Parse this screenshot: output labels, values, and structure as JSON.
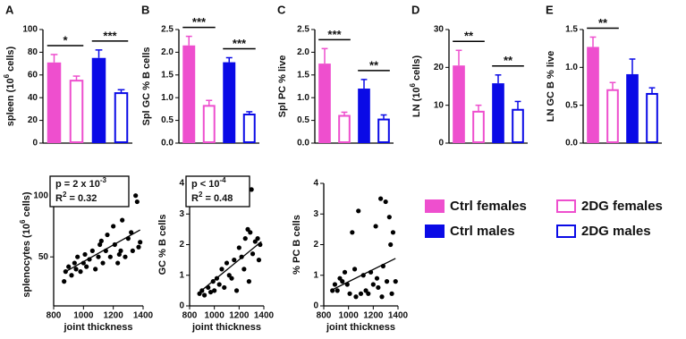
{
  "chart_data": [
    {
      "type": "bar",
      "panel_label": "A",
      "ylabel": {
        "text": "spleen (10",
        "sup": "6",
        "tail": " cells)"
      },
      "values": [
        71,
        55,
        75,
        44
      ],
      "errors": [
        7,
        4,
        7,
        3
      ],
      "colors": [
        "#ee4fce",
        "#ee4fce",
        "#0a0ae6",
        "#0a0ae6"
      ],
      "filled": [
        true,
        false,
        true,
        false
      ],
      "ylim": [
        0,
        100
      ],
      "yticks": [
        0,
        20,
        40,
        60,
        80,
        100
      ],
      "significance": [
        {
          "label": "*",
          "bars": [
            0,
            1
          ]
        },
        {
          "label": "***",
          "bars": [
            2,
            3
          ]
        }
      ]
    },
    {
      "type": "bar",
      "panel_label": "B",
      "ylabel": "Spl GC % B cells",
      "values": [
        2.15,
        0.82,
        1.78,
        0.63
      ],
      "errors": [
        0.2,
        0.12,
        0.1,
        0.06
      ],
      "colors": [
        "#ee4fce",
        "#ee4fce",
        "#0a0ae6",
        "#0a0ae6"
      ],
      "filled": [
        true,
        false,
        true,
        false
      ],
      "ylim": [
        0,
        2.5
      ],
      "yticks": [
        {
          "value": 0,
          "label": "0.0"
        },
        0.5,
        {
          "value": 1,
          "label": "1.0"
        },
        1.5,
        {
          "value": 2,
          "label": "2.0"
        },
        2.5
      ],
      "significance": [
        {
          "label": "***",
          "bars": [
            0,
            1
          ]
        },
        {
          "label": "***",
          "bars": [
            2,
            3
          ]
        }
      ]
    },
    {
      "type": "bar",
      "panel_label": "C",
      "ylabel": "Spl PC % live",
      "values": [
        1.75,
        0.6,
        1.2,
        0.52
      ],
      "errors": [
        0.33,
        0.08,
        0.2,
        0.1
      ],
      "colors": [
        "#ee4fce",
        "#ee4fce",
        "#0a0ae6",
        "#0a0ae6"
      ],
      "filled": [
        true,
        false,
        true,
        false
      ],
      "ylim": [
        0,
        2.5
      ],
      "yticks": [
        {
          "value": 0,
          "label": "0.0"
        },
        0.5,
        {
          "value": 1,
          "label": "1.0"
        },
        1.5,
        {
          "value": 2,
          "label": "2.0"
        },
        2.5
      ],
      "significance": [
        {
          "label": "***",
          "bars": [
            0,
            1
          ]
        },
        {
          "label": "**",
          "bars": [
            2,
            3
          ]
        }
      ]
    },
    {
      "type": "bar",
      "panel_label": "D",
      "ylabel": {
        "text": "LN (10",
        "sup": "6",
        "tail": " cells)"
      },
      "values": [
        20.5,
        8.3,
        15.8,
        8.8
      ],
      "errors": [
        4,
        1.7,
        2.2,
        2.2
      ],
      "colors": [
        "#ee4fce",
        "#ee4fce",
        "#0a0ae6",
        "#0a0ae6"
      ],
      "filled": [
        true,
        false,
        true,
        false
      ],
      "ylim": [
        0,
        30
      ],
      "yticks": [
        0,
        10,
        20,
        30
      ],
      "significance": [
        {
          "label": "**",
          "bars": [
            0,
            1
          ]
        },
        {
          "label": "**",
          "bars": [
            2,
            3
          ]
        }
      ]
    },
    {
      "type": "bar",
      "panel_label": "E",
      "ylabel": "LN GC B % live",
      "values": [
        1.27,
        0.7,
        0.91,
        0.65
      ],
      "errors": [
        0.13,
        0.1,
        0.2,
        0.08
      ],
      "colors": [
        "#ee4fce",
        "#ee4fce",
        "#0a0ae6",
        "#0a0ae6"
      ],
      "filled": [
        true,
        false,
        true,
        false
      ],
      "ylim": [
        0,
        1.5
      ],
      "yticks": [
        {
          "value": 0,
          "label": "0.0"
        },
        0.5,
        {
          "value": 1,
          "label": "1.0"
        },
        1.5
      ],
      "significance": [
        {
          "label": "**",
          "bars": [
            0,
            1
          ]
        }
      ]
    },
    {
      "type": "scatter",
      "xlabel": "joint thickness",
      "ylabel": {
        "text": "splenocytes (10",
        "sup": "6",
        "tail": " cells)"
      },
      "annotation": [
        {
          "text": "p = 2 x 10",
          "sup": "-3"
        },
        {
          "text": "R",
          "sup": "2",
          "tail": " = 0.32"
        }
      ],
      "x": [
        870,
        880,
        900,
        920,
        940,
        950,
        960,
        980,
        1000,
        1010,
        1020,
        1040,
        1060,
        1080,
        1100,
        1110,
        1130,
        1150,
        1160,
        1180,
        1200,
        1210,
        1230,
        1250,
        1260,
        1280,
        1300,
        1320,
        1330,
        1350,
        1360,
        1370,
        1380,
        1240,
        1120
      ],
      "y": [
        30,
        38,
        42,
        35,
        45,
        40,
        50,
        38,
        45,
        52,
        42,
        48,
        55,
        40,
        50,
        60,
        45,
        55,
        68,
        50,
        75,
        60,
        45,
        55,
        80,
        50,
        65,
        70,
        55,
        100,
        95,
        58,
        62,
        52,
        63
      ],
      "fit": {
        "x": [
          880,
          1380
        ],
        "y": [
          38,
          72
        ]
      },
      "xlim": [
        800,
        1400
      ],
      "xticks": [
        800,
        1000,
        1200,
        1400
      ],
      "ylim": [
        10,
        110
      ],
      "yticks": [
        50,
        100
      ]
    },
    {
      "type": "scatter",
      "xlabel": "joint thickness",
      "ylabel": "GC % B cells",
      "annotation": [
        {
          "text": "p < 10",
          "sup": "-4"
        },
        {
          "text": "R",
          "sup": "2",
          "tail": " = 0.48"
        }
      ],
      "x": [
        880,
        900,
        920,
        950,
        970,
        990,
        1000,
        1020,
        1040,
        1060,
        1080,
        1100,
        1120,
        1140,
        1160,
        1180,
        1200,
        1220,
        1240,
        1250,
        1270,
        1280,
        1290,
        1300,
        1310,
        1330,
        1350,
        1360,
        1370
      ],
      "y": [
        0.4,
        0.5,
        0.35,
        0.6,
        0.45,
        0.8,
        0.5,
        0.9,
        0.7,
        1.2,
        0.6,
        1.4,
        1.0,
        0.9,
        1.5,
        0.5,
        1.9,
        1.6,
        1.2,
        2.2,
        2.5,
        0.8,
        2.4,
        3.8,
        1.7,
        2.1,
        2.2,
        1.5,
        2.0
      ],
      "fit": {
        "x": [
          880,
          1380
        ],
        "y": [
          0.45,
          2.1
        ]
      },
      "xlim": [
        800,
        1400
      ],
      "xticks": [
        800,
        1000,
        1200,
        1400
      ],
      "ylim": [
        0,
        4
      ],
      "yticks": [
        0,
        1,
        2,
        3,
        4
      ]
    },
    {
      "type": "scatter",
      "xlabel": "joint thickness",
      "ylabel": "% PC B cells",
      "x": [
        870,
        890,
        910,
        930,
        950,
        970,
        990,
        1010,
        1030,
        1050,
        1060,
        1080,
        1100,
        1120,
        1140,
        1160,
        1180,
        1200,
        1220,
        1240,
        1260,
        1270,
        1280,
        1300,
        1310,
        1330,
        1340,
        1350,
        1360,
        1380,
        1230
      ],
      "y": [
        0.5,
        0.7,
        0.5,
        0.9,
        0.8,
        1.1,
        0.7,
        0.4,
        2.4,
        1.2,
        0.3,
        3.1,
        0.4,
        1.0,
        0.5,
        0.4,
        1.1,
        0.7,
        2.6,
        0.6,
        3.5,
        0.3,
        1.3,
        3.4,
        0.8,
        2.9,
        2.0,
        0.4,
        2.4,
        0.8,
        0.9
      ],
      "fit": {
        "x": [
          880,
          1380
        ],
        "y": [
          0.55,
          1.55
        ]
      },
      "xlim": [
        800,
        1400
      ],
      "xticks": [
        800,
        1000,
        1200,
        1400
      ],
      "ylim": [
        0,
        4
      ],
      "yticks": [
        0,
        1,
        2,
        3,
        4
      ]
    }
  ],
  "legend": {
    "entries": [
      "Ctrl females",
      "2DG females",
      "Ctrl males",
      "2DG males"
    ]
  }
}
